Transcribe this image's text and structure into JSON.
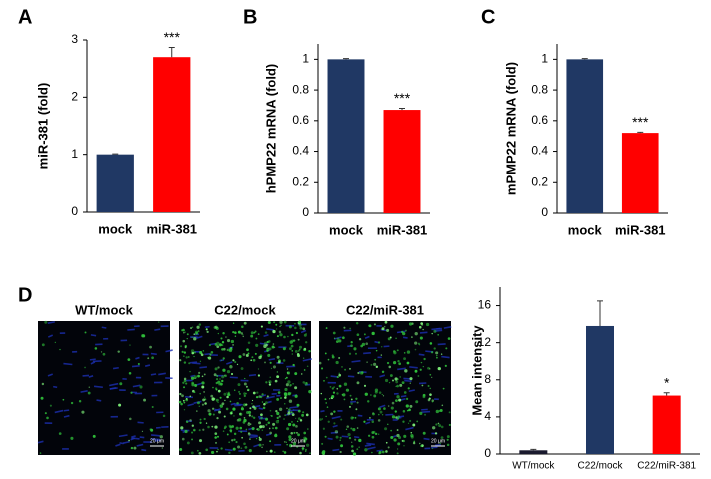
{
  "panel_labels": [
    "A",
    "B",
    "C",
    "D"
  ],
  "micrographs": {
    "titles": [
      "WT/mock",
      "C22/mock",
      "C22/miR-381"
    ],
    "scale_bar": "20 μm"
  },
  "chart_data": [
    {
      "type": "bar",
      "y_label": "miR-381 (fold)",
      "categories": [
        "mock",
        "miR-381"
      ],
      "series": [
        {
          "values": [
            1.0,
            2.7
          ],
          "errors": [
            0.01,
            0.17
          ],
          "colors": [
            "#203864",
            "#ff0000"
          ]
        }
      ],
      "significance": [
        null,
        "***"
      ],
      "ylim": [
        0,
        3
      ],
      "yticks": [
        0,
        1,
        2,
        3
      ]
    },
    {
      "type": "bar",
      "y_label": "hPMP22 mRNA (fold)",
      "categories": [
        "mock",
        "miR-381"
      ],
      "series": [
        {
          "values": [
            1.0,
            0.67
          ],
          "errors": [
            0.005,
            0.01
          ],
          "colors": [
            "#203864",
            "#ff0000"
          ]
        }
      ],
      "significance": [
        null,
        "***"
      ],
      "ylim": [
        0,
        1.1
      ],
      "yticks": [
        0,
        0.2,
        0.4,
        0.6,
        0.8,
        1
      ]
    },
    {
      "type": "bar",
      "y_label": "mPMP22 mRNA (fold)",
      "categories": [
        "mock",
        "miR-381"
      ],
      "series": [
        {
          "values": [
            1.0,
            0.52
          ],
          "errors": [
            0.005,
            0.005
          ],
          "colors": [
            "#203864",
            "#ff0000"
          ]
        }
      ],
      "significance": [
        null,
        "***"
      ],
      "ylim": [
        0,
        1.1
      ],
      "yticks": [
        0,
        0.2,
        0.4,
        0.6,
        0.8,
        1
      ]
    },
    {
      "type": "bar",
      "y_label": "Mean intensity",
      "categories": [
        "WT/mock",
        "C22/mock",
        "C22/miR-381"
      ],
      "series": [
        {
          "values": [
            0.4,
            13.8,
            6.3
          ],
          "errors": [
            0.1,
            2.7,
            0.3
          ],
          "colors": [
            "#1a1a2e",
            "#203864",
            "#ff0000"
          ]
        }
      ],
      "significance": [
        null,
        null,
        "*"
      ],
      "ylim": [
        0,
        18
      ],
      "yticks": [
        0,
        4,
        8,
        12,
        16
      ]
    }
  ]
}
